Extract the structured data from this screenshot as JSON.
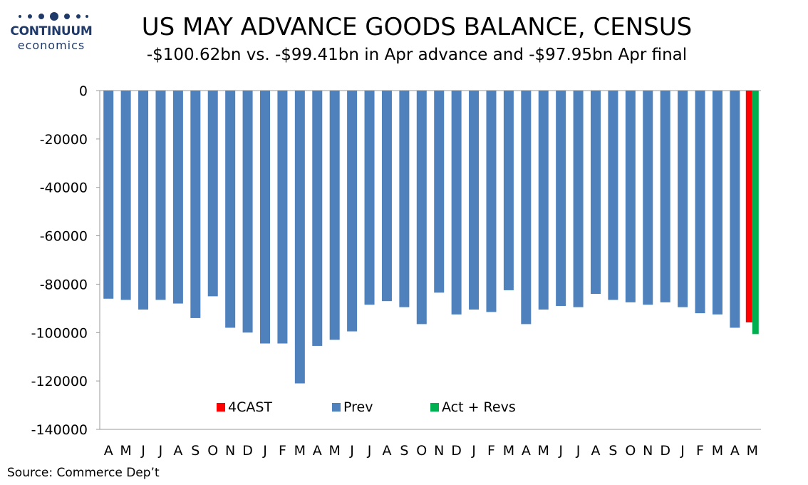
{
  "logo": {
    "top": "CONTINUUM",
    "bottom": "economics"
  },
  "title": "US MAY ADVANCE GOODS BALANCE, CENSUS",
  "subtitle": "-$100.62bn vs. -$99.41bn in Apr advance and -$97.95bn Apr final",
  "source": "Source: Commerce Dep’t",
  "colors": {
    "prev": "#4f81bd",
    "forecast": "#ff0000",
    "actual": "#00b050"
  },
  "chart_data": {
    "type": "bar",
    "categories": [
      "A",
      "M",
      "J",
      "J",
      "A",
      "S",
      "O",
      "N",
      "D",
      "J",
      "F",
      "M",
      "A",
      "M",
      "J",
      "J",
      "A",
      "S",
      "O",
      "N",
      "D",
      "J",
      "F",
      "M",
      "A",
      "M",
      "J",
      "J",
      "A",
      "S",
      "O",
      "N",
      "D",
      "J",
      "F",
      "M",
      "A",
      "M"
    ],
    "series": [
      {
        "name": "Prev",
        "values": [
          -86000,
          -86500,
          -90500,
          -86500,
          -88000,
          -94000,
          -85000,
          -98000,
          -100000,
          -104500,
          -104500,
          -121000,
          -105500,
          -103000,
          -99500,
          -88500,
          -87000,
          -89500,
          -96500,
          -83500,
          -92500,
          -90500,
          -91500,
          -82500,
          -96500,
          -90500,
          -89000,
          -89500,
          -84000,
          -86500,
          -87500,
          -88500,
          -87500,
          -89500,
          -92000,
          -92500,
          -98000,
          null
        ]
      },
      {
        "name": "4CAST",
        "values": [
          null,
          null,
          null,
          null,
          null,
          null,
          null,
          null,
          null,
          null,
          null,
          null,
          null,
          null,
          null,
          null,
          null,
          null,
          null,
          null,
          null,
          null,
          null,
          null,
          null,
          null,
          null,
          null,
          null,
          null,
          null,
          null,
          null,
          null,
          null,
          null,
          null,
          -95800
        ]
      },
      {
        "name": "Act + Revs",
        "values": [
          null,
          null,
          null,
          null,
          null,
          null,
          null,
          null,
          null,
          null,
          null,
          null,
          null,
          null,
          null,
          null,
          null,
          null,
          null,
          null,
          null,
          null,
          null,
          null,
          null,
          null,
          null,
          null,
          null,
          null,
          null,
          null,
          null,
          null,
          null,
          null,
          null,
          -100620
        ]
      }
    ],
    "ylim": [
      -140000,
      0
    ],
    "yticks": [
      "0",
      "-20000",
      "-40000",
      "-60000",
      "-80000",
      "-100000",
      "-120000",
      "-140000"
    ],
    "ytick_values": [
      0,
      -20000,
      -40000,
      -60000,
      -80000,
      -100000,
      -120000,
      -140000
    ],
    "legend": [
      "4CAST",
      "Prev",
      "Act + Revs"
    ],
    "legend_position": "bottom-inside",
    "grid": false
  }
}
